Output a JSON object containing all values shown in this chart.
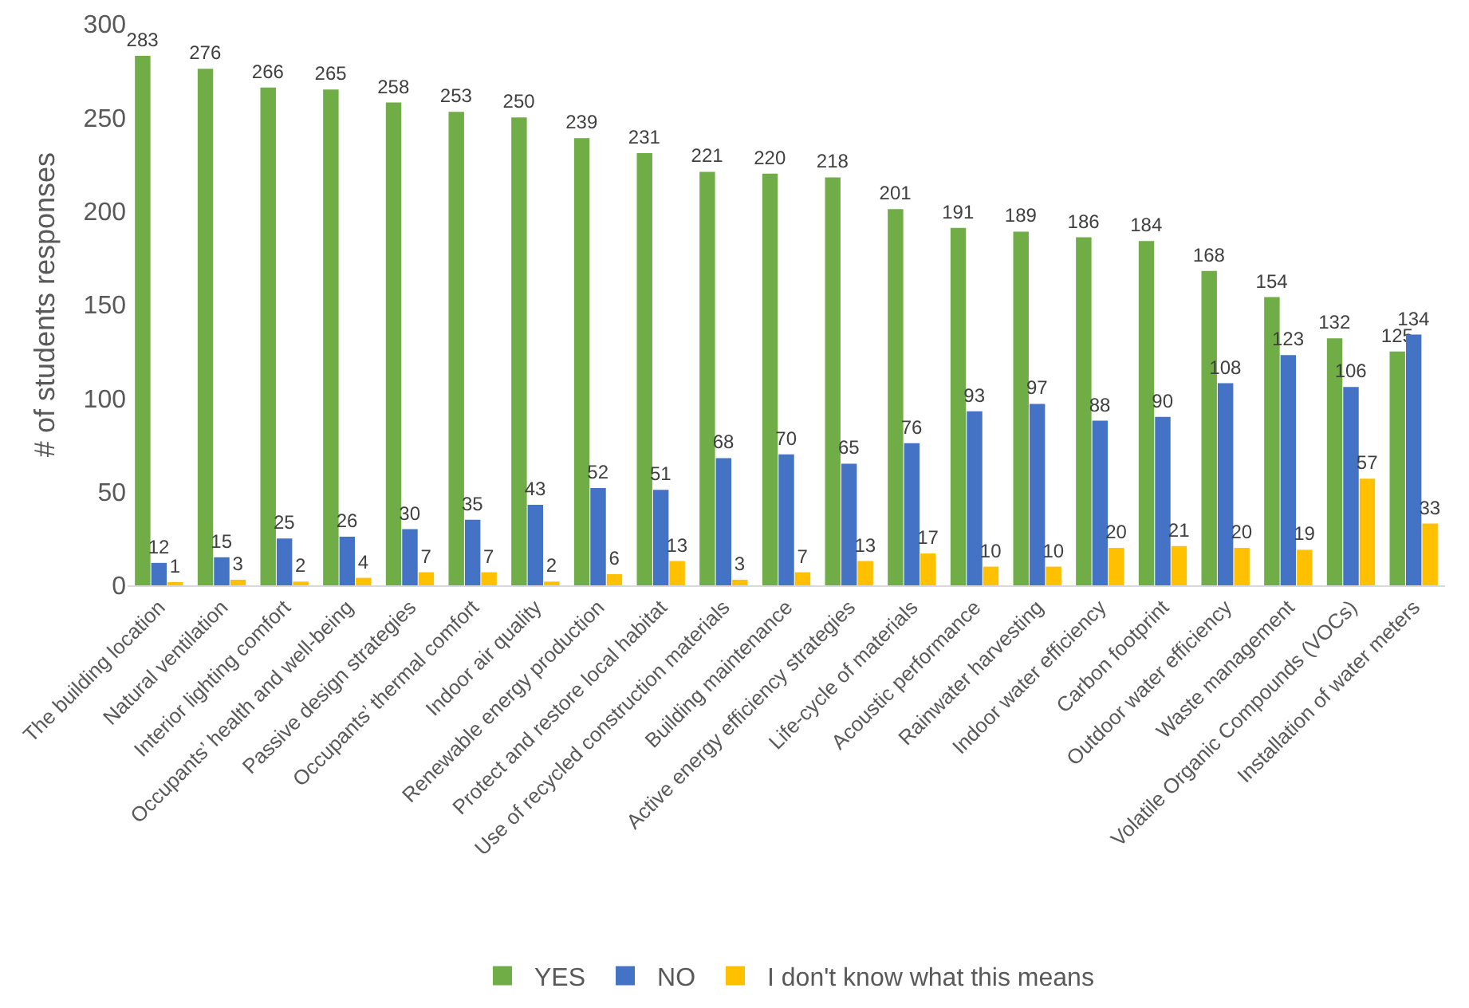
{
  "chart_data": {
    "type": "bar",
    "ylabel": "# of students responses",
    "categories": [
      "The building location",
      "Natural ventilation",
      "Interior lighting comfort",
      "Occupants’ health and well-being",
      "Passive design strategies",
      "Occupants’ thermal comfort",
      "Indoor air quality",
      "Renewable energy production",
      "Protect and restore local habitat",
      "Use of recycled construction materials",
      "Building maintenance",
      "Active energy efficiency strategies",
      "Life-cycle of materials",
      "Acoustic performance",
      "Rainwater harvesting",
      "Indoor water efficiency",
      "Carbon footprint",
      "Outdoor water efficiency",
      "Waste management",
      "Volatile Organic Compounds (VOCs)",
      "Installation of water meters"
    ],
    "series": [
      {
        "name": "YES",
        "color": "#70ad47",
        "values": [
          283,
          276,
          266,
          265,
          258,
          253,
          250,
          239,
          231,
          221,
          220,
          218,
          201,
          191,
          189,
          186,
          184,
          168,
          154,
          132,
          125
        ]
      },
      {
        "name": "NO",
        "color": "#4472c4",
        "values": [
          12,
          15,
          25,
          26,
          30,
          35,
          43,
          52,
          51,
          68,
          70,
          65,
          76,
          93,
          97,
          88,
          90,
          108,
          123,
          106,
          134
        ]
      },
      {
        "name": "I don't know what this means",
        "color": "#ffc000",
        "values": [
          1,
          3,
          2,
          4,
          7,
          7,
          2,
          6,
          13,
          3,
          7,
          13,
          17,
          10,
          10,
          20,
          21,
          20,
          19,
          57,
          33
        ]
      }
    ],
    "ylim": [
      0,
      300
    ],
    "yticks": [
      0,
      50,
      100,
      150,
      200,
      250,
      300
    ],
    "grid": false,
    "legend": "bottom",
    "data_labels": true
  }
}
